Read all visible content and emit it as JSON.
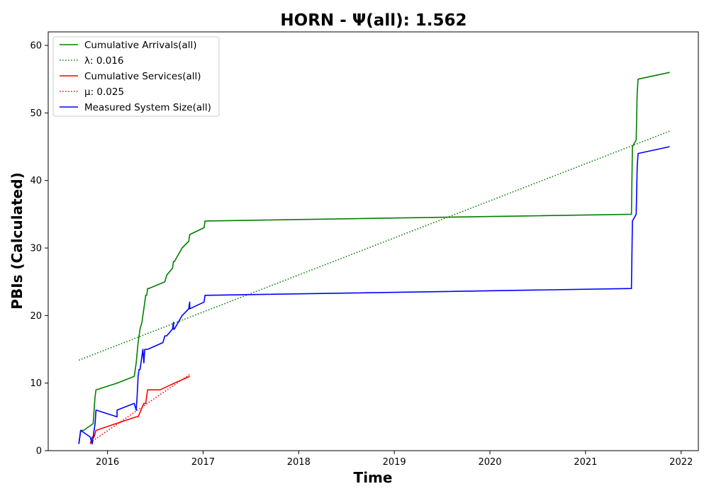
{
  "chart_data": {
    "type": "line",
    "title": "HORN -  Ψ(all): 1.562",
    "xlabel": "Time",
    "ylabel": "PBIs (Calculated)",
    "xlim": [
      2015.38,
      2022.18
    ],
    "ylim": [
      0,
      62
    ],
    "xticks": [
      2016,
      2017,
      2018,
      2019,
      2020,
      2021,
      2022
    ],
    "yticks": [
      0,
      10,
      20,
      30,
      40,
      50,
      60
    ],
    "grid": false,
    "legend_position": "top-left",
    "colors": {
      "arrivals": "#008000",
      "services": "#ff0000",
      "system": "#0000ff"
    },
    "series": [
      {
        "name": "Cumulative Arrivals(all)",
        "key": "arrivals",
        "style": "solid",
        "x": [
          2015.7,
          2015.72,
          2015.75,
          2015.85,
          2015.86,
          2015.87,
          2015.88,
          2016.1,
          2016.28,
          2016.3,
          2016.32,
          2016.34,
          2016.36,
          2016.37,
          2016.38,
          2016.4,
          2016.41,
          2016.42,
          2016.43,
          2016.6,
          2016.62,
          2016.68,
          2016.69,
          2016.7,
          2016.78,
          2016.85,
          2016.86,
          2017.01,
          2017.02,
          2021.48,
          2021.49,
          2021.53,
          2021.54,
          2021.55,
          2021.88
        ],
        "y": [
          1,
          3,
          3,
          4,
          6,
          8,
          9,
          10,
          11,
          13,
          16,
          18,
          19,
          20,
          21,
          23,
          23,
          24,
          24,
          25,
          26,
          27,
          28,
          28,
          30,
          31,
          32,
          33,
          34,
          35,
          45,
          46,
          53,
          55,
          56
        ]
      },
      {
        "name": "λ: 0.016",
        "key": "arrivals",
        "style": "dotted",
        "x": [
          2015.7,
          2021.88
        ],
        "y": [
          13.4,
          47.3
        ]
      },
      {
        "name": "Cumulative Services(all)",
        "key": "services",
        "style": "solid",
        "x": [
          2015.82,
          2015.84,
          2015.86,
          2015.88,
          2016.3,
          2016.32,
          2016.38,
          2016.4,
          2016.42,
          2016.55,
          2016.7,
          2016.86
        ],
        "y": [
          1,
          2,
          2,
          3,
          5,
          5,
          7,
          7,
          9,
          9,
          10,
          11
        ]
      },
      {
        "name": "μ: 0.025",
        "key": "services",
        "style": "dotted",
        "x": [
          2015.82,
          2016.86
        ],
        "y": [
          1.2,
          11.3
        ]
      },
      {
        "name": "Measured System Size(all)",
        "key": "system",
        "style": "solid",
        "x": [
          2015.7,
          2015.72,
          2015.82,
          2015.84,
          2015.86,
          2015.87,
          2015.88,
          2016.1,
          2016.1,
          2016.28,
          2016.3,
          2016.31,
          2016.32,
          2016.33,
          2016.34,
          2016.35,
          2016.36,
          2016.37,
          2016.38,
          2016.39,
          2016.4,
          2016.41,
          2016.42,
          2016.58,
          2016.6,
          2016.62,
          2016.68,
          2016.69,
          2016.69,
          2016.7,
          2016.78,
          2016.85,
          2016.86,
          2016.86,
          2017.01,
          2017.02,
          2021.48,
          2021.49,
          2021.53,
          2021.54,
          2021.55,
          2021.88
        ],
        "y": [
          1,
          3,
          2,
          1,
          3,
          4,
          6,
          5,
          6,
          7,
          6,
          8,
          11,
          12,
          12,
          13,
          14,
          15,
          13,
          15,
          15,
          15,
          15,
          16,
          17,
          17,
          18,
          19,
          18,
          18,
          20,
          21,
          22,
          21,
          22,
          23,
          24,
          34,
          35,
          42,
          44,
          45
        ]
      }
    ]
  }
}
